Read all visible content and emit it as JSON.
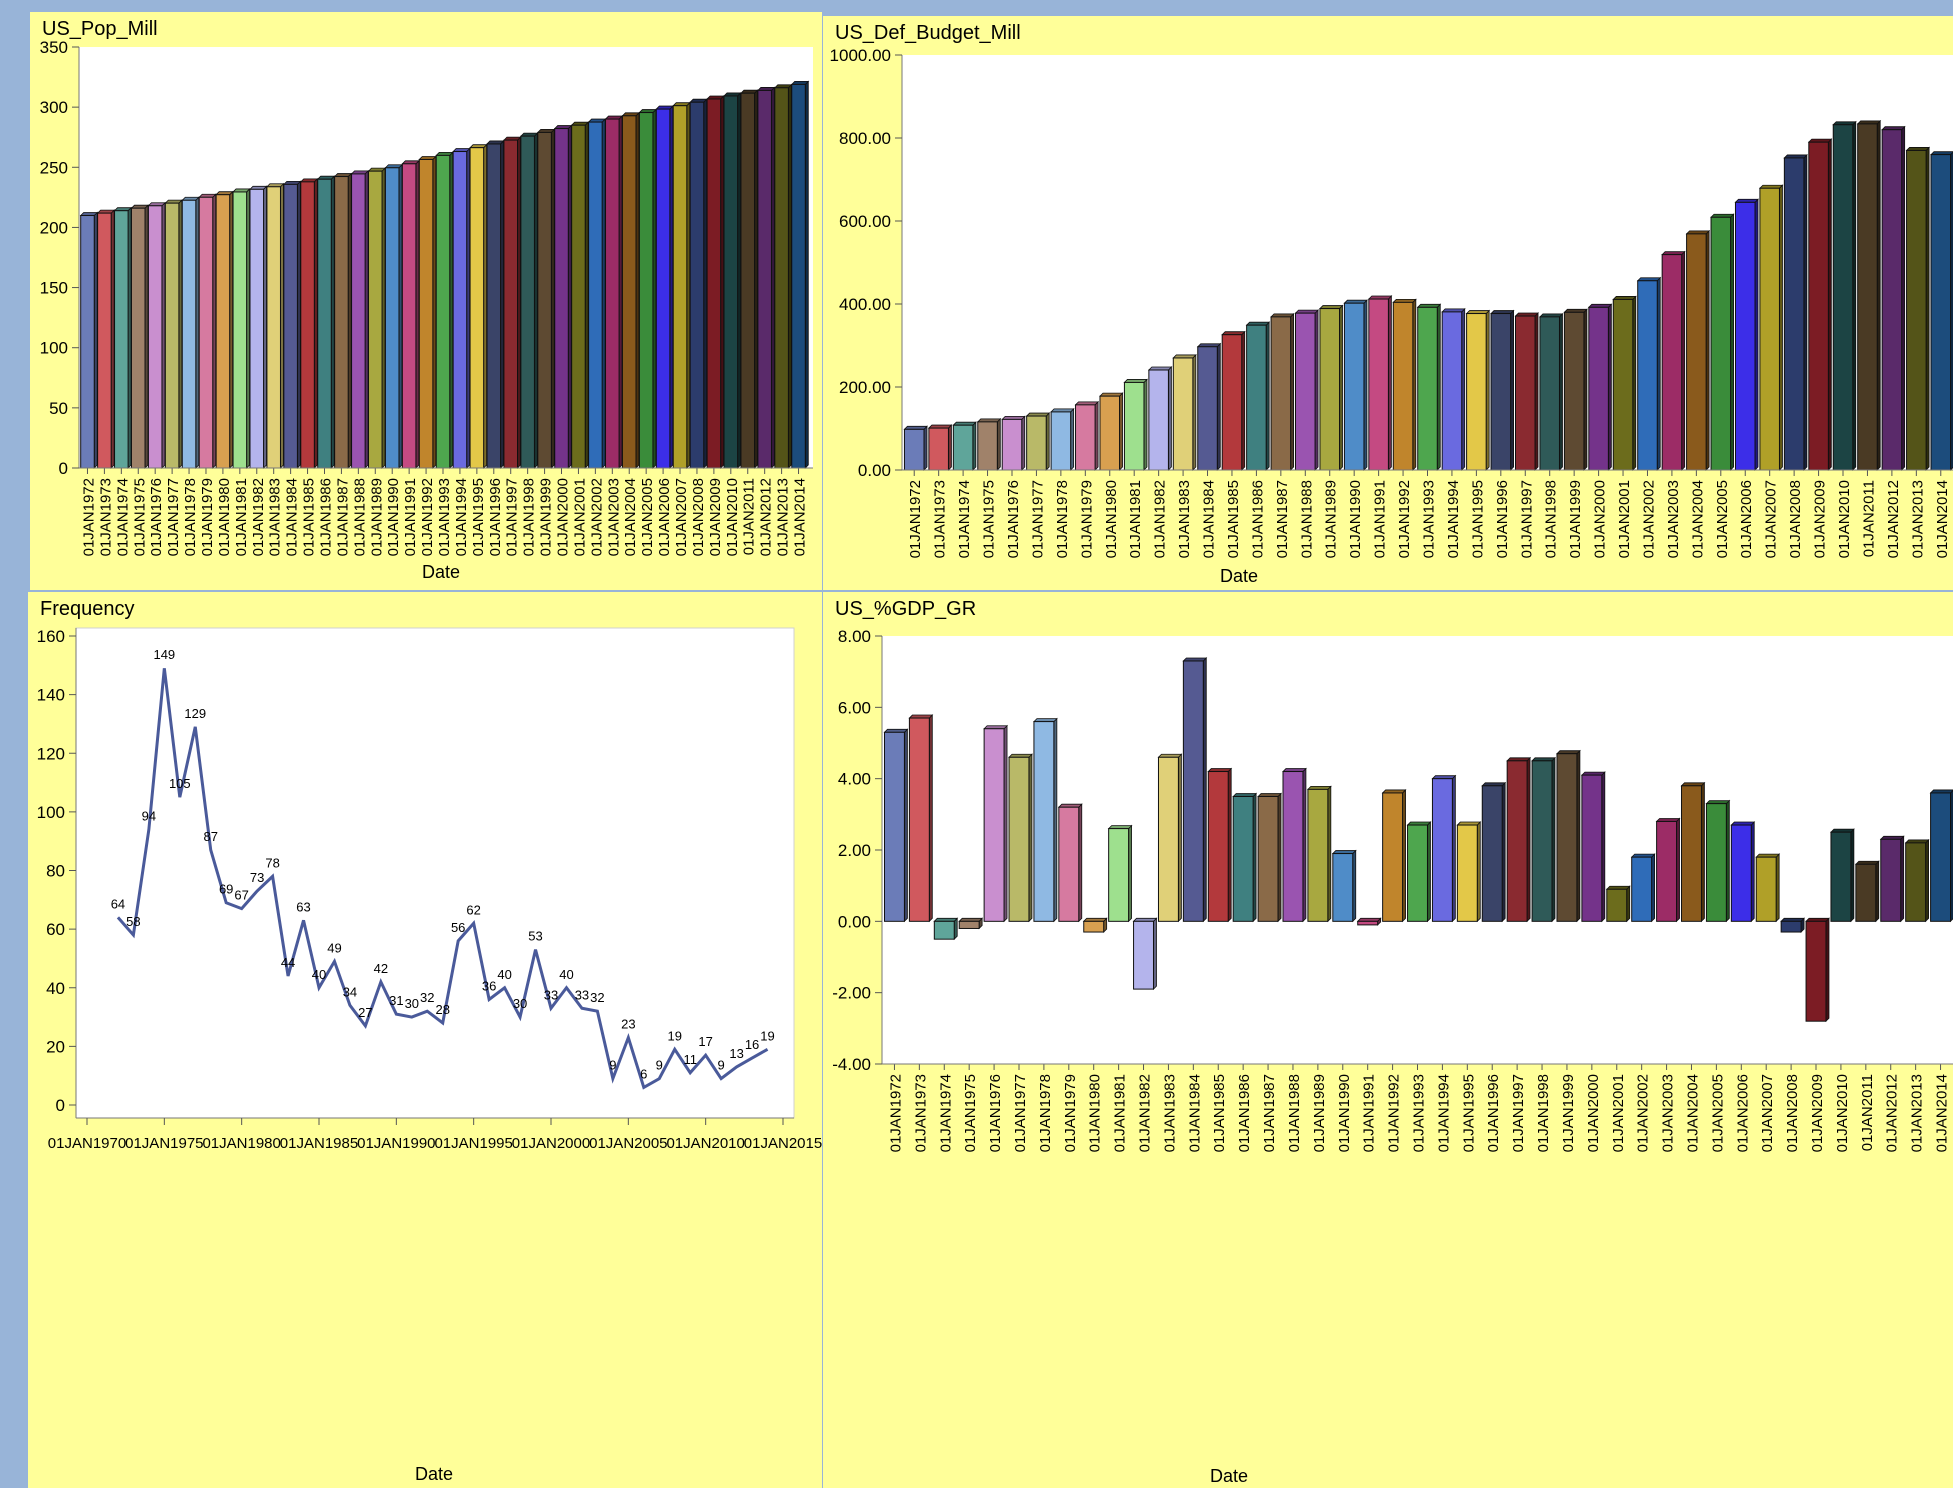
{
  "charts": [
    {
      "title": "US_Pop_Mill",
      "xlabel": "Date"
    },
    {
      "title": "US_Def_Budget_Mill",
      "xlabel": "Date"
    },
    {
      "title": "Frequency",
      "xlabel": "Date"
    },
    {
      "title": "US_%GDP_GR",
      "xlabel": "Date"
    }
  ],
  "bar_palette": [
    "#6b7cb8",
    "#d0595e",
    "#5fa59a",
    "#a0826a",
    "#c98fcf",
    "#b9b968",
    "#8fb9e3",
    "#d67aa0",
    "#d8a050",
    "#9ee08e",
    "#b4b4ec",
    "#e0d078",
    "#555a92",
    "#b3393c",
    "#3f8080",
    "#8a6a48",
    "#9a54b0",
    "#a8a840",
    "#4f8cc8",
    "#c44a82",
    "#c0852c",
    "#4ea64e",
    "#6a6ae0",
    "#e3c848",
    "#3a4468",
    "#8a2a30",
    "#2f5a58",
    "#5e4a32",
    "#74338a",
    "#6c6c1c",
    "#2f6cb8",
    "#9c2c66",
    "#8a5a1c",
    "#3a8c3a",
    "#3c2ee8",
    "#b0a028",
    "#2c3c6c",
    "#7c1c24",
    "#1c4444",
    "#4a3a24",
    "#5a2a6a",
    "#545418",
    "#1c4c7c"
  ],
  "chart_data": [
    {
      "type": "bar",
      "title": "US_Pop_Mill",
      "xlabel": "Date",
      "ylabel": "",
      "ylim": [
        0,
        350
      ],
      "yticks": [
        0,
        50,
        100,
        150,
        200,
        250,
        300,
        350
      ],
      "ytick_labels": [
        "0",
        "50",
        "100",
        "150",
        "200",
        "250",
        "300",
        "350"
      ],
      "categories": [
        "01JAN1972",
        "01JAN1973",
        "01JAN1974",
        "01JAN1975",
        "01JAN1976",
        "01JAN1977",
        "01JAN1978",
        "01JAN1979",
        "01JAN1980",
        "01JAN1981",
        "01JAN1982",
        "01JAN1983",
        "01JAN1984",
        "01JAN1985",
        "01JAN1986",
        "01JAN1987",
        "01JAN1988",
        "01JAN1989",
        "01JAN1990",
        "01JAN1991",
        "01JAN1992",
        "01JAN1993",
        "01JAN1994",
        "01JAN1995",
        "01JAN1996",
        "01JAN1997",
        "01JAN1998",
        "01JAN1999",
        "01JAN2000",
        "01JAN2001",
        "01JAN2002",
        "01JAN2003",
        "01JAN2004",
        "01JAN2005",
        "01JAN2006",
        "01JAN2007",
        "01JAN2008",
        "01JAN2009",
        "01JAN2010",
        "01JAN2011",
        "01JAN2012",
        "01JAN2013",
        "01JAN2014"
      ],
      "values": [
        209.9,
        211.9,
        213.9,
        216.0,
        218.0,
        220.2,
        222.6,
        225.1,
        227.2,
        229.5,
        231.7,
        233.8,
        235.8,
        237.9,
        240.1,
        242.3,
        244.5,
        246.8,
        249.6,
        252.9,
        256.5,
        259.9,
        263.1,
        266.3,
        269.4,
        272.6,
        275.9,
        279.0,
        282.2,
        285.0,
        287.6,
        290.1,
        292.8,
        295.5,
        298.4,
        301.2,
        304.1,
        306.8,
        309.3,
        311.6,
        313.9,
        316.1,
        318.9
      ],
      "grid": false
    },
    {
      "type": "bar",
      "title": "US_Def_Budget_Mill",
      "xlabel": "Date",
      "ylabel": "",
      "ylim": [
        0,
        1000
      ],
      "yticks": [
        0,
        200,
        400,
        600,
        800,
        1000
      ],
      "ytick_labels": [
        "0.00",
        "200.00",
        "400.00",
        "600.00",
        "800.00",
        "1000.00"
      ],
      "categories": [
        "01JAN1972",
        "01JAN1973",
        "01JAN1974",
        "01JAN1975",
        "01JAN1976",
        "01JAN1977",
        "01JAN1978",
        "01JAN1979",
        "01JAN1980",
        "01JAN1981",
        "01JAN1982",
        "01JAN1983",
        "01JAN1984",
        "01JAN1985",
        "01JAN1986",
        "01JAN1987",
        "01JAN1988",
        "01JAN1989",
        "01JAN1990",
        "01JAN1991",
        "01JAN1992",
        "01JAN1993",
        "01JAN1994",
        "01JAN1995",
        "01JAN1996",
        "01JAN1997",
        "01JAN1998",
        "01JAN1999",
        "01JAN2000",
        "01JAN2001",
        "01JAN2002",
        "01JAN2003",
        "01JAN2004",
        "01JAN2005",
        "01JAN2006",
        "01JAN2007",
        "01JAN2008",
        "01JAN2009",
        "01JAN2010",
        "01JAN2011",
        "01JAN2012",
        "01JAN2013",
        "01JAN2014"
      ],
      "values": [
        98,
        101,
        108,
        116,
        122,
        130,
        140,
        157,
        178,
        211,
        241,
        270,
        297,
        326,
        349,
        369,
        378,
        389,
        402,
        412,
        404,
        392,
        381,
        377,
        377,
        371,
        369,
        380,
        392,
        411,
        456,
        519,
        569,
        609,
        645,
        679,
        752,
        790,
        832,
        834,
        820,
        770,
        760
      ],
      "grid": false
    },
    {
      "type": "line",
      "title": "Frequency",
      "xlabel": "Date",
      "ylabel": "",
      "ylim": [
        0,
        160
      ],
      "yticks": [
        0,
        20,
        40,
        60,
        80,
        100,
        120,
        140,
        160
      ],
      "xlim": [
        1970,
        2015
      ],
      "xticks": [
        1970,
        1975,
        1980,
        1985,
        1990,
        1995,
        2000,
        2005,
        2010,
        2015
      ],
      "xtick_labels": [
        "01JAN1970",
        "01JAN1975",
        "01JAN1980",
        "01JAN1985",
        "01JAN1990",
        "01JAN1995",
        "01JAN2000",
        "01JAN2005",
        "01JAN2010",
        "01JAN2015"
      ],
      "x": [
        1972,
        1973,
        1974,
        1975,
        1976,
        1977,
        1978,
        1979,
        1980,
        1981,
        1982,
        1983,
        1984,
        1985,
        1986,
        1987,
        1988,
        1989,
        1990,
        1991,
        1992,
        1993,
        1994,
        1995,
        1996,
        1997,
        1998,
        1999,
        2000,
        2001,
        2002,
        2003,
        2004,
        2005,
        2006,
        2007,
        2008,
        2009,
        2010,
        2011,
        2012,
        2013,
        2014
      ],
      "y": [
        64,
        58,
        94,
        149,
        105,
        129,
        87,
        69,
        67,
        73,
        78,
        44,
        63,
        40,
        49,
        34,
        27,
        42,
        31,
        30,
        32,
        28,
        56,
        62,
        36,
        40,
        30,
        53,
        33,
        40,
        33,
        32,
        9,
        23,
        6,
        9,
        19,
        11,
        17,
        9,
        13,
        16,
        19
      ],
      "data_labels": true,
      "series_color": "#4a5a9a",
      "grid": false
    },
    {
      "type": "bar",
      "title": "US_%GDP_GR",
      "xlabel": "Date",
      "ylabel": "",
      "ylim": [
        -4,
        8
      ],
      "yticks": [
        -4,
        -2,
        0,
        2,
        4,
        6,
        8
      ],
      "ytick_labels": [
        "-4.00",
        "-2.00",
        "0.00",
        "2.00",
        "4.00",
        "6.00",
        "8.00"
      ],
      "categories": [
        "01JAN1972",
        "01JAN1973",
        "01JAN1974",
        "01JAN1975",
        "01JAN1976",
        "01JAN1977",
        "01JAN1978",
        "01JAN1979",
        "01JAN1980",
        "01JAN1981",
        "01JAN1982",
        "01JAN1983",
        "01JAN1984",
        "01JAN1985",
        "01JAN1986",
        "01JAN1987",
        "01JAN1988",
        "01JAN1989",
        "01JAN1990",
        "01JAN1991",
        "01JAN1992",
        "01JAN1993",
        "01JAN1994",
        "01JAN1995",
        "01JAN1996",
        "01JAN1997",
        "01JAN1998",
        "01JAN1999",
        "01JAN2000",
        "01JAN2001",
        "01JAN2002",
        "01JAN2003",
        "01JAN2004",
        "01JAN2005",
        "01JAN2006",
        "01JAN2007",
        "01JAN2008",
        "01JAN2009",
        "01JAN2010",
        "01JAN2011",
        "01JAN2012",
        "01JAN2013",
        "01JAN2014"
      ],
      "values": [
        5.3,
        5.7,
        -0.5,
        -0.2,
        5.4,
        4.6,
        5.6,
        3.2,
        -0.3,
        2.6,
        -1.9,
        4.6,
        7.3,
        4.2,
        3.5,
        3.5,
        4.2,
        3.7,
        1.9,
        -0.1,
        3.6,
        2.7,
        4.0,
        2.7,
        3.8,
        4.5,
        4.5,
        4.7,
        4.1,
        0.9,
        1.8,
        2.8,
        3.8,
        3.3,
        2.7,
        1.8,
        -0.3,
        -2.8,
        2.5,
        1.6,
        2.3,
        2.2,
        3.6
      ],
      "grid": false
    }
  ]
}
